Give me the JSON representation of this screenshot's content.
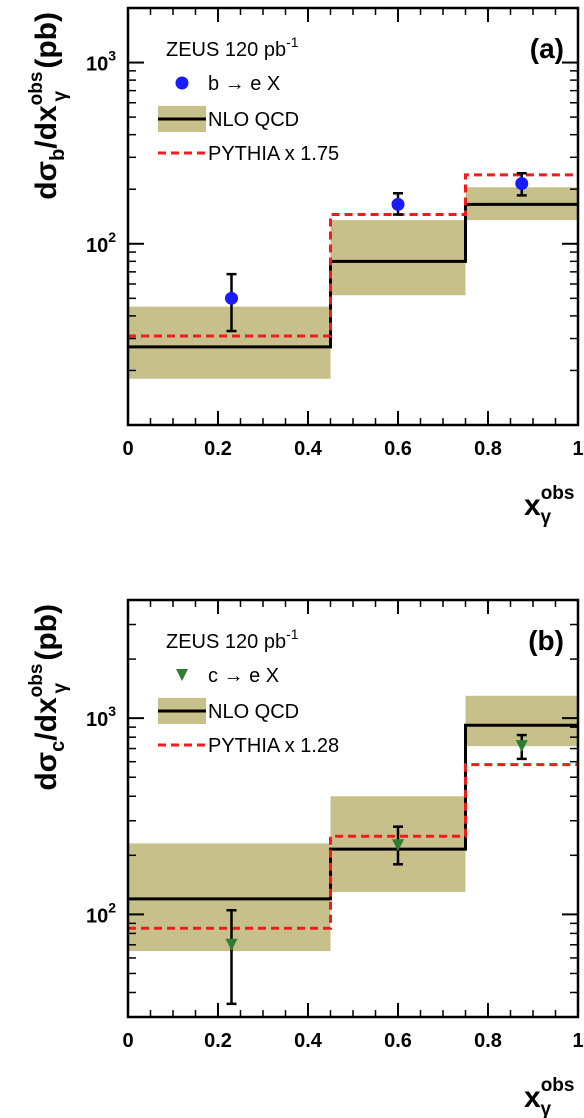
{
  "colors": {
    "band": "#c8c08a",
    "nlo": "#000000",
    "pythia": "#ee1c1c",
    "b_marker": "#1a1aff",
    "c_marker": "#2e7d32"
  },
  "chart_data": [
    {
      "type": "line",
      "panel_label": "(a)",
      "ylabel": {
        "main": "dσ",
        "sub": "b",
        "mid": "/dx",
        "sub2": "γ",
        "sup": "obs",
        "unit": " (pb)"
      },
      "xlabel": {
        "main": "x",
        "sub": "γ",
        "sup": "obs"
      },
      "xlim": [
        0,
        1
      ],
      "ylim": [
        10,
        2000
      ],
      "yscale": "log",
      "x_ticks": [
        "0",
        "0.2",
        "0.4",
        "0.6",
        "0.8",
        "1"
      ],
      "y_ticks": [
        {
          "base": "10",
          "exp": "2",
          "value": 100
        },
        {
          "base": "10",
          "exp": "3",
          "value": 1000
        }
      ],
      "legend": {
        "title": "ZEUS 120 pb",
        "title_sup": "-1",
        "entries": [
          "b → e X",
          "NLO QCD",
          "PYTHIA x 1.75"
        ]
      },
      "bins": [
        [
          0,
          0.45
        ],
        [
          0.45,
          0.75
        ],
        [
          0.75,
          1.0
        ]
      ],
      "series": [
        {
          "name": "NLO QCD",
          "values": [
            27,
            80,
            165
          ],
          "band_low": [
            18,
            52,
            135
          ],
          "band_high": [
            45,
            135,
            205
          ]
        },
        {
          "name": "PYTHIA x 1.75",
          "values": [
            31,
            145,
            240
          ]
        },
        {
          "name": "b → e X",
          "x": [
            0.23,
            0.6,
            0.875
          ],
          "values": [
            50,
            165,
            215
          ],
          "err_low": [
            33,
            145,
            185
          ],
          "err_high": [
            68,
            190,
            245
          ]
        }
      ]
    },
    {
      "type": "line",
      "panel_label": "(b)",
      "ylabel": {
        "main": "dσ",
        "sub": "c",
        "mid": "/dx",
        "sub2": "γ",
        "sup": "obs",
        "unit": " (pb)"
      },
      "xlabel": {
        "main": "x",
        "sub": "γ",
        "sup": "obs"
      },
      "xlim": [
        0,
        1
      ],
      "ylim": [
        30,
        4000
      ],
      "yscale": "log",
      "x_ticks": [
        "0",
        "0.2",
        "0.4",
        "0.6",
        "0.8",
        "1"
      ],
      "y_ticks": [
        {
          "base": "10",
          "exp": "2",
          "value": 100
        },
        {
          "base": "10",
          "exp": "3",
          "value": 1000
        }
      ],
      "legend": {
        "title": "ZEUS 120 pb",
        "title_sup": "-1",
        "entries": [
          "c → e X",
          "NLO QCD",
          "PYTHIA x 1.28"
        ]
      },
      "bins": [
        [
          0,
          0.45
        ],
        [
          0.45,
          0.75
        ],
        [
          0.75,
          1.0
        ]
      ],
      "series": [
        {
          "name": "NLO QCD",
          "values": [
            120,
            215,
            920
          ],
          "band_low": [
            65,
            130,
            720
          ],
          "band_high": [
            230,
            400,
            1300
          ]
        },
        {
          "name": "PYTHIA x 1.28",
          "values": [
            85,
            250,
            580
          ]
        },
        {
          "name": "c → e X",
          "x": [
            0.23,
            0.6,
            0.875
          ],
          "values": [
            70,
            225,
            720
          ],
          "err_low": [
            35,
            180,
            620
          ],
          "err_high": [
            105,
            280,
            820
          ]
        }
      ]
    }
  ]
}
